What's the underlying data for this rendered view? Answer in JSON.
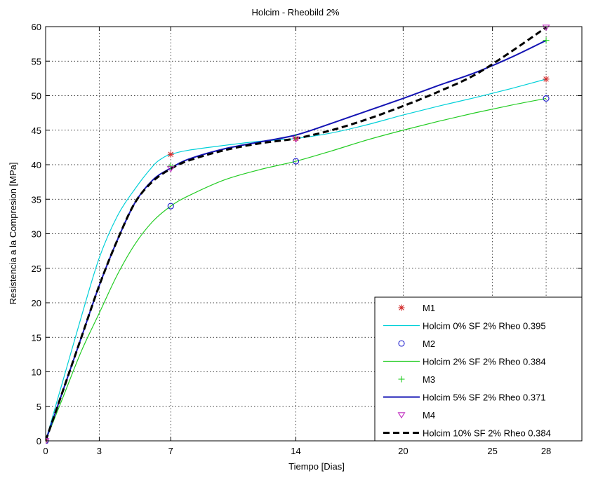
{
  "chart_data": {
    "type": "line",
    "title": "Holcim - Rheobild 2%",
    "xlabel": "Tiempo [Dias]",
    "ylabel": "Resistencia a la Compresion [MPa]",
    "xlim": [
      0,
      30
    ],
    "ylim": [
      0,
      60
    ],
    "xticks": [
      0,
      3,
      7,
      14,
      20,
      25,
      28
    ],
    "yticks": [
      0,
      5,
      10,
      15,
      20,
      25,
      30,
      35,
      40,
      45,
      50,
      55,
      60
    ],
    "grid": true,
    "legend_position": "bottom-right",
    "series": [
      {
        "name": "M1",
        "kind": "markers",
        "marker": "star",
        "color": "#d22a2a",
        "x": [
          0,
          7,
          14,
          28
        ],
        "y": [
          0,
          41.5,
          43.8,
          52.4
        ]
      },
      {
        "name": "Holcim 0% SF 2% Rheo 0.395",
        "kind": "line",
        "color": "#00d0d8",
        "dash": "solid",
        "x": [
          0,
          1,
          2,
          3,
          4,
          5,
          6,
          6.5,
          7,
          8,
          10,
          12,
          14,
          16,
          18,
          20,
          22,
          24,
          26,
          28
        ],
        "y": [
          0,
          9,
          18,
          26.5,
          32.5,
          36.5,
          39.8,
          40.9,
          41.5,
          42.1,
          42.8,
          43.4,
          43.8,
          44.6,
          45.8,
          47.2,
          48.5,
          49.7,
          51,
          52.4
        ]
      },
      {
        "name": "M2",
        "kind": "markers",
        "marker": "circle",
        "color": "#1a1acc",
        "x": [
          0,
          7,
          14,
          28
        ],
        "y": [
          0,
          34,
          40.5,
          49.6
        ]
      },
      {
        "name": "Holcim 2% SF 2% Rheo 0.384",
        "kind": "line",
        "color": "#22cc22",
        "dash": "solid",
        "x": [
          0,
          1,
          2,
          3,
          4,
          5,
          6,
          7,
          8,
          10,
          12,
          14,
          16,
          18,
          20,
          22,
          24,
          26,
          28
        ],
        "y": [
          0,
          6.5,
          13,
          18.5,
          24,
          28.5,
          31.8,
          34,
          35.5,
          37.8,
          39.3,
          40.5,
          42,
          43.6,
          45,
          46.3,
          47.5,
          48.6,
          49.6
        ]
      },
      {
        "name": "M3",
        "kind": "markers",
        "marker": "plus",
        "color": "#22cc22",
        "x": [
          0,
          7,
          14,
          28
        ],
        "y": [
          0,
          39.8,
          44,
          58
        ]
      },
      {
        "name": "Holcim 5% SF 2% Rheo 0.371",
        "kind": "line",
        "color": "#1414b4",
        "dash": "solid",
        "x": [
          0,
          1,
          2,
          3,
          4,
          5,
          6,
          7,
          8,
          10,
          12,
          14,
          16,
          18,
          20,
          22,
          24,
          26,
          28
        ],
        "y": [
          0,
          7.5,
          15,
          22.5,
          29,
          34.5,
          37.8,
          39.5,
          40.8,
          42.3,
          43.3,
          44.3,
          46,
          47.8,
          49.6,
          51.5,
          53.3,
          55.5,
          58
        ]
      },
      {
        "name": "M4",
        "kind": "markers",
        "marker": "triangle-down",
        "color": "#c030c0",
        "x": [
          0,
          7,
          14,
          28
        ],
        "y": [
          0,
          39.4,
          43.7,
          59.9
        ]
      },
      {
        "name": "Holcim 10% SF 2% Rheo 0.384",
        "kind": "line",
        "color": "#000000",
        "dash": "dashed",
        "x": [
          0,
          1,
          2,
          3,
          4,
          5,
          6,
          7,
          8,
          10,
          12,
          14,
          16,
          18,
          20,
          22,
          24,
          26,
          28
        ],
        "y": [
          0,
          7.5,
          15,
          22.5,
          29,
          34.5,
          37.6,
          39.4,
          40.6,
          42.1,
          43.1,
          43.8,
          45,
          46.6,
          48.5,
          50.6,
          53,
          56.3,
          59.9
        ]
      }
    ]
  }
}
